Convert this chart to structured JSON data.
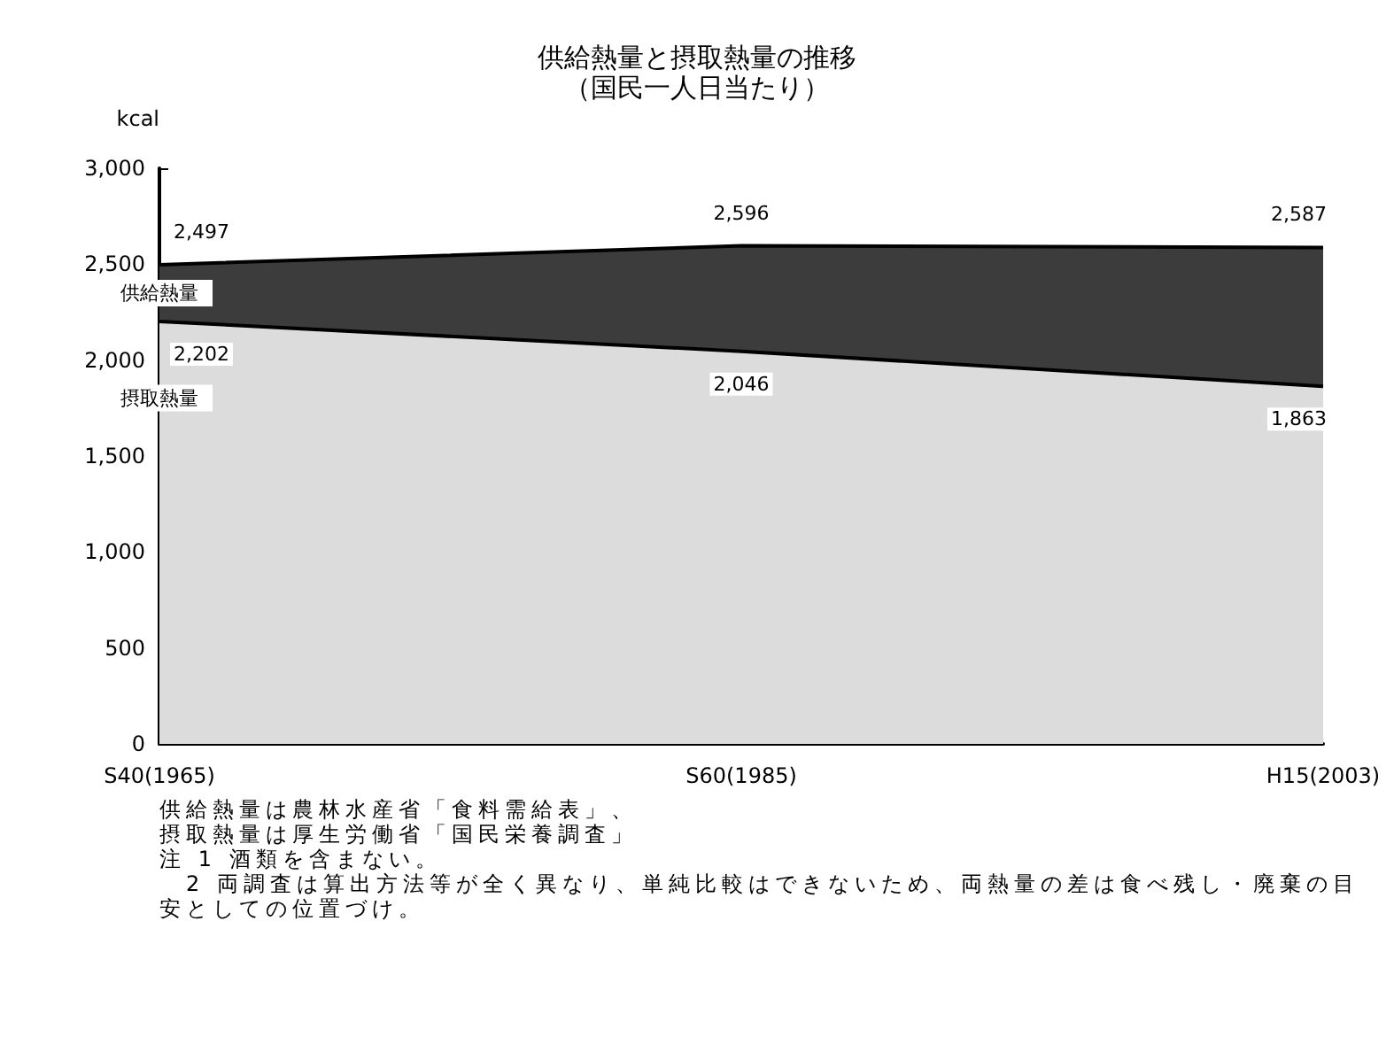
{
  "chart_data": {
    "type": "area",
    "title": "供給熱量と摂取熱量の推移",
    "subtitle": "（国民一人日当たり）",
    "ylabel": "kcal",
    "categories": [
      "S40(1965)",
      "S60(1985)",
      "H15(2003)"
    ],
    "series": [
      {
        "name": "供給熱量",
        "color": "#3c3c3c",
        "values": [
          2497,
          2596,
          2587
        ],
        "value_labels": [
          "2,497",
          "2,596",
          "2,587"
        ]
      },
      {
        "name": "摂取熱量",
        "color": "#dcdcdc",
        "values": [
          2202,
          2046,
          1863
        ],
        "value_labels": [
          "2,202",
          "2,046",
          "1,863"
        ]
      }
    ],
    "ylim": [
      0,
      3000
    ],
    "yticks": [
      {
        "value": 0,
        "label": "0"
      },
      {
        "value": 500,
        "label": "500"
      },
      {
        "value": 1000,
        "label": "1,000"
      },
      {
        "value": 1500,
        "label": "1,500"
      },
      {
        "value": 2000,
        "label": "2,000"
      },
      {
        "value": 2500,
        "label": "2,500"
      },
      {
        "value": 3000,
        "label": "3,000"
      }
    ],
    "grid": false,
    "legend": false,
    "annotations": [
      "供給熱量は農林水産省「食料需給表」、",
      "摂取熱量は厚生労働省「国民栄養調査」",
      "注 1 酒類を含まない。",
      "　2 両調査は算出方法等が全く異なり、単純比較はできないため、両熱量の差は食べ残し・廃棄の目安としての位置づけ。"
    ]
  }
}
